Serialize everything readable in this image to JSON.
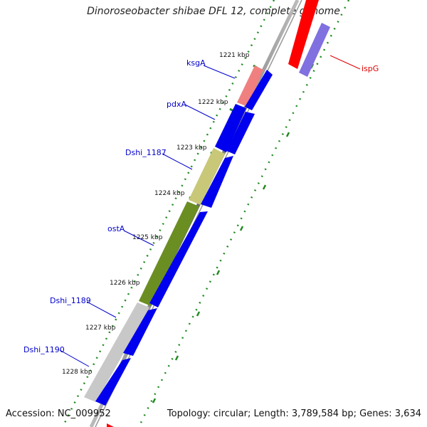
{
  "title": "Dinoroseobacter shibae DFL 12, complete genome",
  "accession": "Accession: NC_009952",
  "summary": "Topology: circular; Length: 3,789,584 bp; Genes: 3,634",
  "colors": {
    "blue_cds": "#0000ee",
    "red_gene": "#ff0000",
    "pink_gene": "#f08080",
    "olive_gene": "#c8c878",
    "green_gene": "#6b8e23",
    "grey_gene": "#c8c8c8",
    "purple_gene": "#8070e0",
    "label_blue": "#0000cc",
    "label_red": "#dd0000",
    "tick_green": "#228b22"
  },
  "kbp_labels": [
    "1221 kbp",
    "1222 kbp",
    "1223 kbp",
    "1224 kbp",
    "1225 kbp",
    "1226 kbp",
    "1227 kbp",
    "1228 kbp"
  ],
  "gene_labels": [
    {
      "name": "ksgA",
      "color": "blue"
    },
    {
      "name": "pdxA",
      "color": "blue"
    },
    {
      "name": "Dshi_1187",
      "color": "blue"
    },
    {
      "name": "ostA",
      "color": "blue"
    },
    {
      "name": "Dshi_1189",
      "color": "blue"
    },
    {
      "name": "Dshi_1190",
      "color": "blue"
    },
    {
      "name": "ispG",
      "color": "red"
    }
  ]
}
